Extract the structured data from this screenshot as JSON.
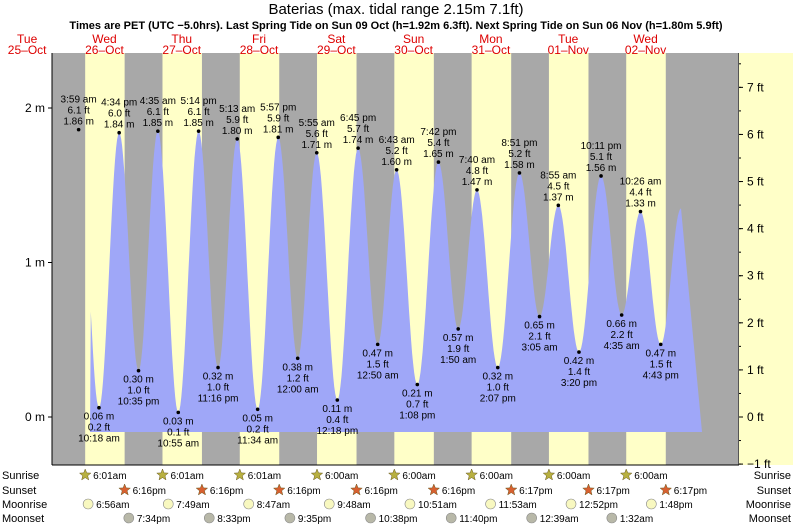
{
  "title": "Baterias (max. tidal range 2.15m 7.1ft)",
  "subtitle": "Times are PET (UTC −5.0hrs). Last Spring Tide on Sun 09 Oct (h=1.92m 6.3ft). Next Spring Tide on Sun 06 Nov (h=1.80m 5.9ft)",
  "colors": {
    "night": "#a8a8a8",
    "day": "#ffffc8",
    "tide": "#9fa7f8",
    "date": "#dd0000",
    "sun": "#b8b040",
    "sunset": "#d86030",
    "moonrise": "#f8f8c0",
    "moonset": "#b8b8a8"
  },
  "chart_data": {
    "type": "area",
    "title": "Baterias (max. tidal range 2.15m 7.1ft)",
    "ylabel_left_unit": "m",
    "ylabel_right_unit": "ft",
    "days": [
      {
        "dow": "Tue",
        "date": "25–Oct"
      },
      {
        "dow": "Wed",
        "date": "26–Oct"
      },
      {
        "dow": "Thu",
        "date": "27–Oct"
      },
      {
        "dow": "Fri",
        "date": "28–Oct"
      },
      {
        "dow": "Sat",
        "date": "29–Oct"
      },
      {
        "dow": "Sun",
        "date": "30–Oct"
      },
      {
        "dow": "Mon",
        "date": "31–Oct"
      },
      {
        "dow": "Tue",
        "date": "01–Nov"
      },
      {
        "dow": "Wed",
        "date": "02–Nov"
      }
    ],
    "left_ticks": [
      {
        "v": 0,
        "label": "0 m"
      },
      {
        "v": 1,
        "label": "1 m"
      },
      {
        "v": 2,
        "label": "2 m"
      }
    ],
    "right_ticks": [
      {
        "v": -1,
        "label": "−1 ft"
      },
      {
        "v": 0,
        "label": "0 ft"
      },
      {
        "v": 1,
        "label": "1 ft"
      },
      {
        "v": 2,
        "label": "2 ft"
      },
      {
        "v": 3,
        "label": "3 ft"
      },
      {
        "v": 4,
        "label": "4 ft"
      },
      {
        "v": 5,
        "label": "5 ft"
      },
      {
        "v": 6,
        "label": "6 ft"
      },
      {
        "v": 7,
        "label": "7 ft"
      }
    ],
    "sunrise_hours": [
      6.017,
      6.017,
      6.017,
      6.017,
      6.0,
      6.0,
      6.0,
      6.0,
      6.0
    ],
    "sunset_hours": [
      18.267,
      18.267,
      18.267,
      18.267,
      18.267,
      18.267,
      18.283,
      18.283,
      18.283
    ],
    "tides": [
      {
        "day": 1,
        "h": 3.983,
        "m": 1.86,
        "ft": "6.1 ft",
        "mlabel": "1.86 m",
        "time": "3:59 am",
        "type": "high"
      },
      {
        "day": 1,
        "h": 10.3,
        "m": 0.06,
        "ft": "0.2 ft",
        "mlabel": "0.06 m",
        "time": "10:18 am",
        "type": "low"
      },
      {
        "day": 1,
        "h": 16.567,
        "m": 1.84,
        "ft": "6.0 ft",
        "mlabel": "1.84 m",
        "time": "4:34 pm",
        "type": "high"
      },
      {
        "day": 1,
        "h": 22.583,
        "m": 0.3,
        "ft": "1.0 ft",
        "mlabel": "0.30 m",
        "time": "10:35 pm",
        "type": "low"
      },
      {
        "day": 2,
        "h": 4.583,
        "m": 1.85,
        "ft": "6.1 ft",
        "mlabel": "1.85 m",
        "time": "4:35 am",
        "type": "high"
      },
      {
        "day": 2,
        "h": 10.917,
        "m": 0.03,
        "ft": "0.1 ft",
        "mlabel": "0.03 m",
        "time": "10:55 am",
        "type": "low"
      },
      {
        "day": 2,
        "h": 17.233,
        "m": 1.85,
        "ft": "6.1 ft",
        "mlabel": "1.85 m",
        "time": "5:14 pm",
        "type": "high"
      },
      {
        "day": 2,
        "h": 23.267,
        "m": 0.32,
        "ft": "1.0 ft",
        "mlabel": "0.32 m",
        "time": "11:16 pm",
        "type": "low"
      },
      {
        "day": 3,
        "h": 5.217,
        "m": 1.8,
        "ft": "5.9 ft",
        "mlabel": "1.80 m",
        "time": "5:13 am",
        "type": "high"
      },
      {
        "day": 3,
        "h": 11.567,
        "m": 0.05,
        "ft": "0.2 ft",
        "mlabel": "0.05 m",
        "time": "11:34 am",
        "type": "low"
      },
      {
        "day": 3,
        "h": 17.95,
        "m": 1.81,
        "ft": "5.9 ft",
        "mlabel": "1.81 m",
        "time": "5:57 pm",
        "type": "high"
      },
      {
        "day": 4,
        "h": 0.0,
        "m": 0.38,
        "ft": "1.2 ft",
        "mlabel": "0.38 m",
        "time": "12:00 am",
        "type": "low"
      },
      {
        "day": 4,
        "h": 5.917,
        "m": 1.71,
        "ft": "5.6 ft",
        "mlabel": "1.71 m",
        "time": "5:55 am",
        "type": "high"
      },
      {
        "day": 4,
        "h": 12.3,
        "m": 0.11,
        "ft": "0.4 ft",
        "mlabel": "0.11 m",
        "time": "12:18 pm",
        "type": "low"
      },
      {
        "day": 4,
        "h": 18.75,
        "m": 1.74,
        "ft": "5.7 ft",
        "mlabel": "1.74 m",
        "time": "6:45 pm",
        "type": "high"
      },
      {
        "day": 5,
        "h": 0.833,
        "m": 0.47,
        "ft": "1.5 ft",
        "mlabel": "0.47 m",
        "time": "12:50 am",
        "type": "low"
      },
      {
        "day": 5,
        "h": 6.717,
        "m": 1.6,
        "ft": "5.2 ft",
        "mlabel": "1.60 m",
        "time": "6:43 am",
        "type": "high"
      },
      {
        "day": 5,
        "h": 13.133,
        "m": 0.21,
        "ft": "0.7 ft",
        "mlabel": "0.21 m",
        "time": "1:08 pm",
        "type": "low"
      },
      {
        "day": 5,
        "h": 19.7,
        "m": 1.65,
        "ft": "5.4 ft",
        "mlabel": "1.65 m",
        "time": "7:42 pm",
        "type": "high"
      },
      {
        "day": 6,
        "h": 1.833,
        "m": 0.57,
        "ft": "1.9 ft",
        "mlabel": "0.57 m",
        "time": "1:50 am",
        "type": "low"
      },
      {
        "day": 6,
        "h": 7.667,
        "m": 1.47,
        "ft": "4.8 ft",
        "mlabel": "1.47 m",
        "time": "7:40 am",
        "type": "high"
      },
      {
        "day": 6,
        "h": 14.117,
        "m": 0.32,
        "ft": "1.0 ft",
        "mlabel": "0.32 m",
        "time": "2:07 pm",
        "type": "low"
      },
      {
        "day": 6,
        "h": 20.85,
        "m": 1.58,
        "ft": "5.2 ft",
        "mlabel": "1.58 m",
        "time": "8:51 pm",
        "type": "high"
      },
      {
        "day": 7,
        "h": 3.083,
        "m": 0.65,
        "ft": "2.1 ft",
        "mlabel": "0.65 m",
        "time": "3:05 am",
        "type": "low"
      },
      {
        "day": 7,
        "h": 8.917,
        "m": 1.37,
        "ft": "4.5 ft",
        "mlabel": "1.37 m",
        "time": "8:55 am",
        "type": "high"
      },
      {
        "day": 7,
        "h": 15.333,
        "m": 0.42,
        "ft": "1.4 ft",
        "mlabel": "0.42 m",
        "time": "3:20 pm",
        "type": "low"
      },
      {
        "day": 7,
        "h": 22.183,
        "m": 1.56,
        "ft": "5.1 ft",
        "mlabel": "1.56 m",
        "time": "10:11 pm",
        "type": "high"
      },
      {
        "day": 8,
        "h": 4.583,
        "m": 0.66,
        "ft": "2.2 ft",
        "mlabel": "0.66 m",
        "time": "4:35 am",
        "type": "low"
      },
      {
        "day": 8,
        "h": 10.433,
        "m": 1.33,
        "ft": "4.4 ft",
        "mlabel": "1.33 m",
        "time": "10:26 am",
        "type": "high"
      },
      {
        "day": 8,
        "h": 16.717,
        "m": 0.47,
        "ft": "1.5 ft",
        "mlabel": "0.47 m",
        "time": "4:43 pm",
        "type": "low"
      }
    ],
    "sunrise": [
      {
        "day": 1,
        "h": 6.017,
        "label": "6:01am"
      },
      {
        "day": 2,
        "h": 6.017,
        "label": "6:01am"
      },
      {
        "day": 3,
        "h": 6.017,
        "label": "6:01am"
      },
      {
        "day": 4,
        "h": 6.0,
        "label": "6:00am"
      },
      {
        "day": 5,
        "h": 6.0,
        "label": "6:00am"
      },
      {
        "day": 6,
        "h": 6.0,
        "label": "6:00am"
      },
      {
        "day": 7,
        "h": 6.0,
        "label": "6:00am"
      },
      {
        "day": 8,
        "h": 6.0,
        "label": "6:00am"
      }
    ],
    "sunset": [
      {
        "day": 1,
        "h": 18.267,
        "label": "6:16pm"
      },
      {
        "day": 2,
        "h": 18.267,
        "label": "6:16pm"
      },
      {
        "day": 3,
        "h": 18.267,
        "label": "6:16pm"
      },
      {
        "day": 4,
        "h": 18.267,
        "label": "6:16pm"
      },
      {
        "day": 5,
        "h": 18.267,
        "label": "6:16pm"
      },
      {
        "day": 6,
        "h": 18.283,
        "label": "6:17pm"
      },
      {
        "day": 7,
        "h": 18.283,
        "label": "6:17pm"
      },
      {
        "day": 8,
        "h": 18.283,
        "label": "6:17pm"
      }
    ],
    "moonrise": [
      {
        "day": 1,
        "h": 6.933,
        "label": "6:56am"
      },
      {
        "day": 2,
        "h": 7.817,
        "label": "7:49am"
      },
      {
        "day": 3,
        "h": 8.783,
        "label": "8:47am"
      },
      {
        "day": 4,
        "h": 9.8,
        "label": "9:48am"
      },
      {
        "day": 5,
        "h": 10.85,
        "label": "10:51am"
      },
      {
        "day": 6,
        "h": 11.883,
        "label": "11:53am"
      },
      {
        "day": 7,
        "h": 12.867,
        "label": "12:52pm"
      },
      {
        "day": 8,
        "h": 13.8,
        "label": "1:48pm"
      }
    ],
    "moonset": [
      {
        "day": 1,
        "h": 19.567,
        "label": "7:34pm"
      },
      {
        "day": 2,
        "h": 20.55,
        "label": "8:33pm"
      },
      {
        "day": 3,
        "h": 21.583,
        "label": "9:35pm"
      },
      {
        "day": 4,
        "h": 22.633,
        "label": "10:38pm"
      },
      {
        "day": 5,
        "h": 23.667,
        "label": "11:40pm"
      },
      {
        "day": 7,
        "h": 0.65,
        "label": "12:39am"
      },
      {
        "day": 8,
        "h": 1.533,
        "label": "1:32am"
      }
    ],
    "row_labels": {
      "sunrise": "Sunrise",
      "sunset": "Sunset",
      "moonrise": "Moonrise",
      "moonset": "Moonset"
    }
  }
}
